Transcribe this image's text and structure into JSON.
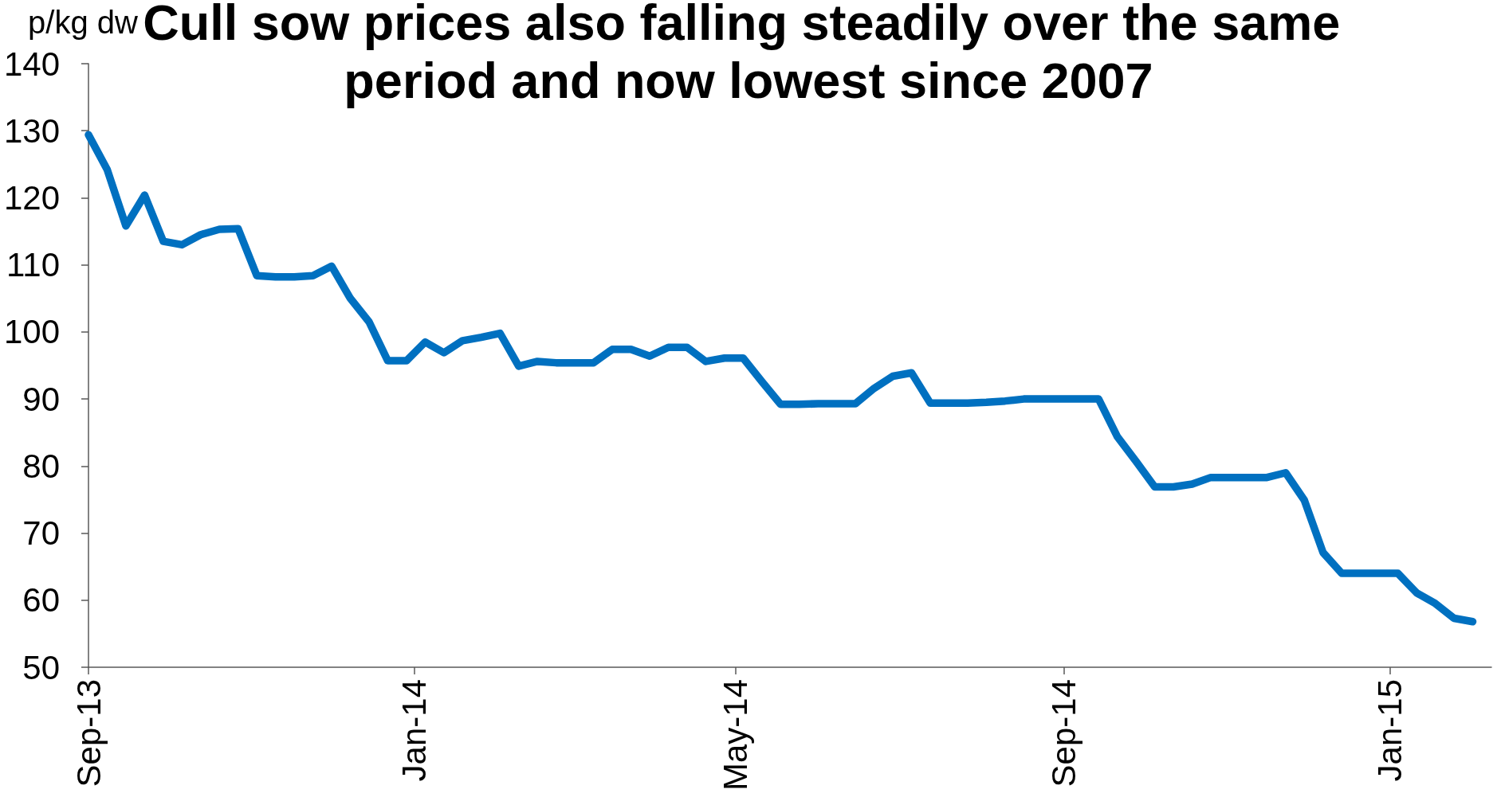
{
  "chart_data": {
    "type": "line",
    "title": "Cull sow prices also falling steadily over the same period and now lowest since 2007",
    "ylabel": "p/kg dw",
    "color": "#0070c0",
    "x": [
      "2013-09-01",
      "2013-09-08",
      "2013-09-15",
      "2013-09-22",
      "2013-09-29",
      "2013-10-06",
      "2013-10-13",
      "2013-10-20",
      "2013-10-27",
      "2013-11-03",
      "2013-11-10",
      "2013-11-17",
      "2013-11-24",
      "2013-12-01",
      "2013-12-08",
      "2013-12-15",
      "2013-12-22",
      "2013-12-29",
      "2014-01-05",
      "2014-01-12",
      "2014-01-19",
      "2014-01-26",
      "2014-02-02",
      "2014-02-09",
      "2014-02-16",
      "2014-02-23",
      "2014-03-02",
      "2014-03-09",
      "2014-03-16",
      "2014-03-23",
      "2014-03-30",
      "2014-04-06",
      "2014-04-13",
      "2014-04-20",
      "2014-04-27",
      "2014-05-04",
      "2014-05-11",
      "2014-05-18",
      "2014-05-25",
      "2014-06-01",
      "2014-06-08",
      "2014-06-15",
      "2014-06-22",
      "2014-06-29",
      "2014-07-06",
      "2014-07-13",
      "2014-07-20",
      "2014-07-27",
      "2014-08-03",
      "2014-08-10",
      "2014-08-17",
      "2014-08-24",
      "2014-08-31",
      "2014-09-07",
      "2014-09-14",
      "2014-09-21",
      "2014-09-28",
      "2014-10-05",
      "2014-10-12",
      "2014-10-19",
      "2014-10-26",
      "2014-11-02",
      "2014-11-09",
      "2014-11-16",
      "2014-11-23",
      "2014-11-30",
      "2014-12-07",
      "2014-12-14",
      "2014-12-21",
      "2014-12-28",
      "2015-01-04",
      "2015-01-11",
      "2015-01-18",
      "2015-01-25",
      "2015-02-01"
    ],
    "values": [
      129.4,
      124.2,
      115.8,
      120.4,
      113.5,
      113.0,
      114.5,
      115.3,
      115.4,
      108.4,
      108.2,
      108.2,
      108.4,
      109.8,
      105.0,
      101.5,
      95.7,
      95.7,
      98.5,
      96.9,
      98.7,
      99.2,
      99.8,
      94.9,
      95.6,
      95.4,
      95.4,
      95.4,
      97.4,
      97.4,
      96.4,
      97.7,
      97.7,
      95.6,
      96.1,
      96.1,
      92.6,
      89.2,
      89.2,
      89.3,
      89.3,
      89.3,
      91.6,
      93.4,
      93.9,
      89.4,
      89.4,
      89.4,
      89.5,
      89.7,
      90.0,
      90.0,
      90.0,
      90.0,
      90.0,
      84.4,
      80.7,
      76.9,
      76.9,
      77.3,
      78.3,
      78.3,
      78.3,
      78.3,
      79.0,
      74.9,
      67.1,
      64.0,
      64.0,
      64.0,
      64.0,
      61.1,
      59.5,
      57.3,
      56.8
    ],
    "xlim": [
      "2013-09-01",
      "2015-02-08"
    ],
    "xticks": [
      {
        "value": "2013-09-01",
        "label": "Sep-13"
      },
      {
        "value": "2014-01-01",
        "label": "Jan-14"
      },
      {
        "value": "2014-05-01",
        "label": "May-14"
      },
      {
        "value": "2014-09-01",
        "label": "Sep-14"
      },
      {
        "value": "2015-01-01",
        "label": "Jan-15"
      }
    ],
    "ylim": [
      50,
      140
    ],
    "yticks": [
      50,
      60,
      70,
      80,
      90,
      100,
      110,
      120,
      130,
      140
    ]
  }
}
